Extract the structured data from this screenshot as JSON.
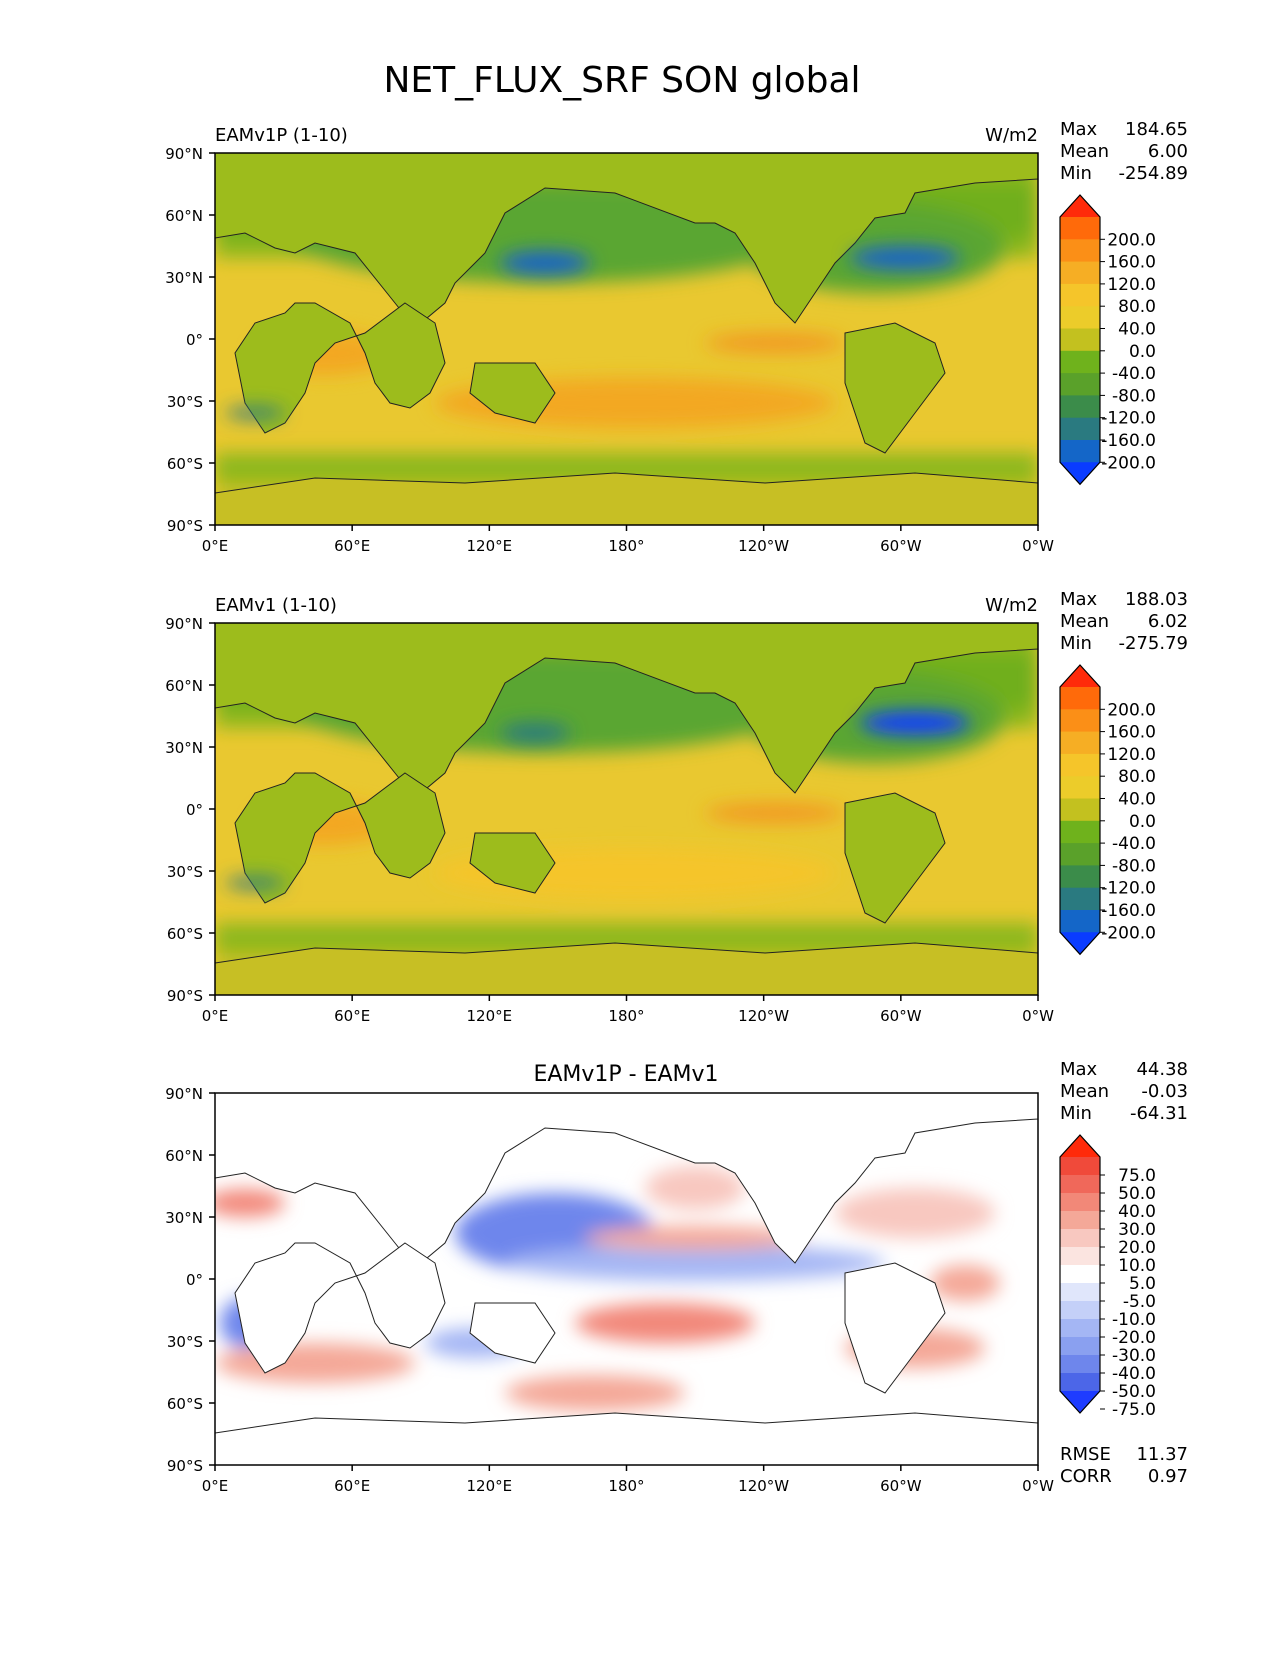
{
  "title": "NET_FLUX_SRF SON global",
  "lat_ticks": [
    "90°N",
    "60°N",
    "30°N",
    "0°",
    "30°S",
    "60°S",
    "90°S"
  ],
  "lon_ticks": [
    "0°E",
    "60°E",
    "120°E",
    "180°",
    "120°W",
    "60°W",
    "0°W"
  ],
  "panels": [
    {
      "left_title": "EAMv1P (1-10)",
      "right_title": "W/m2",
      "center_title": "",
      "stats": [
        {
          "label": "Max",
          "value": "184.65"
        },
        {
          "label": "Mean",
          "value": "6.00"
        },
        {
          "label": "Min",
          "value": "-254.89"
        }
      ],
      "footer": []
    },
    {
      "left_title": "EAMv1 (1-10)",
      "right_title": "W/m2",
      "center_title": "",
      "stats": [
        {
          "label": "Max",
          "value": "188.03"
        },
        {
          "label": "Mean",
          "value": "6.02"
        },
        {
          "label": "Min",
          "value": "-275.79"
        }
      ],
      "footer": []
    },
    {
      "left_title": "",
      "right_title": "",
      "center_title": "EAMv1P - EAMv1",
      "stats": [
        {
          "label": "Max",
          "value": "44.38"
        },
        {
          "label": "Mean",
          "value": "-0.03"
        },
        {
          "label": "Min",
          "value": "-64.31"
        }
      ],
      "footer": [
        {
          "label": "RMSE",
          "value": "11.37"
        },
        {
          "label": "CORR",
          "value": "0.97"
        }
      ]
    }
  ],
  "colorbar_model": {
    "labels": [
      "200.0",
      "160.0",
      "120.0",
      "80.0",
      "40.0",
      "0.0",
      "-40.0",
      "-80.0",
      "-120.0",
      "-160.0",
      "-200.0"
    ],
    "colors": [
      "#ff2a0a",
      "#ff6a0a",
      "#fb8f17",
      "#f6ae24",
      "#f5c52a",
      "#eccc2a",
      "#c3c11f",
      "#6fb21c",
      "#5aa12a",
      "#3b8c4a",
      "#2a7a80",
      "#1466c8",
      "#0a3cff"
    ]
  },
  "colorbar_diff": {
    "labels": [
      "75.0",
      "50.0",
      "40.0",
      "30.0",
      "20.0",
      "10.0",
      "5.0",
      "-5.0",
      "-10.0",
      "-20.0",
      "-30.0",
      "-40.0",
      "-50.0",
      "-75.0"
    ],
    "colors": [
      "#ff2a0a",
      "#f04a3a",
      "#f0685a",
      "#f28878",
      "#f4a898",
      "#f8c8c0",
      "#fbe4e0",
      "#ffffff",
      "#e0e6fb",
      "#c4d0f8",
      "#a4b6f4",
      "#8aa0f0",
      "#6e86ec",
      "#4c66e8",
      "#1e3cff"
    ]
  }
}
